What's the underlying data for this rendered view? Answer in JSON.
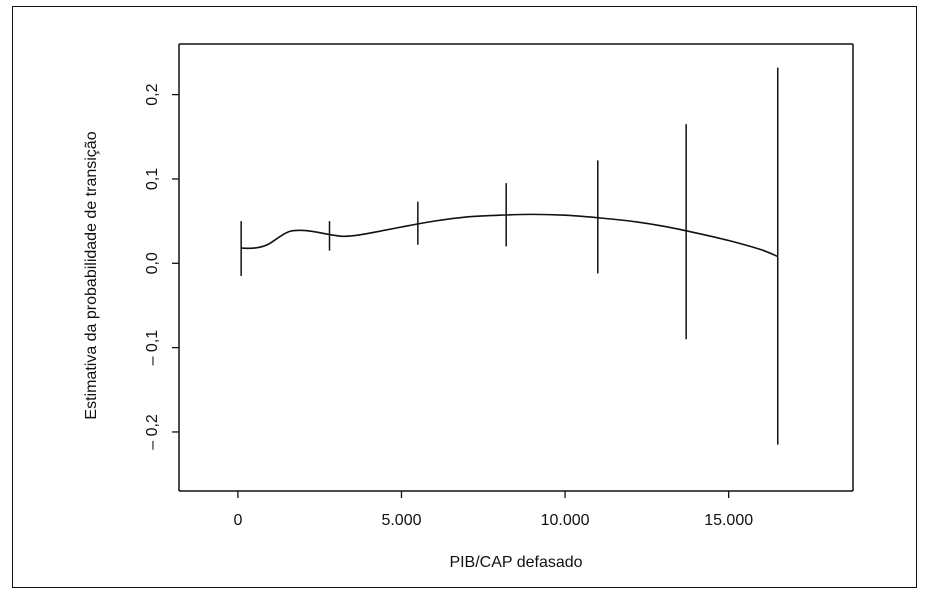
{
  "chart_data": {
    "type": "line",
    "title": "",
    "xlabel": "PIB/CAP defasado",
    "ylabel": "Estimativa da probabilidade de transição",
    "xlim": [
      -1800,
      18800
    ],
    "ylim": [
      -0.27,
      0.26
    ],
    "x_ticks": [
      0,
      5000,
      10000,
      15000
    ],
    "x_tick_labels": [
      "0",
      "5.000",
      "10.000",
      "15.000"
    ],
    "y_ticks": [
      -0.2,
      -0.1,
      0.0,
      0.1,
      0.2
    ],
    "y_tick_labels": [
      "– 0,2",
      "– 0,1",
      "0,0",
      "0,1",
      "0,2"
    ],
    "grid": false,
    "series": [
      {
        "x": [
          100,
          500,
          900,
          1300,
          1600,
          2000,
          2400,
          2800,
          3200,
          3600,
          4200,
          5000,
          6000,
          7000,
          8000,
          9000,
          10000,
          11000,
          12000,
          13000,
          14000,
          15000,
          16000,
          16500
        ],
        "values": [
          0.018,
          0.018,
          0.022,
          0.032,
          0.038,
          0.039,
          0.037,
          0.034,
          0.032,
          0.033,
          0.037,
          0.043,
          0.05,
          0.055,
          0.057,
          0.058,
          0.057,
          0.054,
          0.05,
          0.044,
          0.036,
          0.027,
          0.016,
          0.008
        ]
      }
    ],
    "error_bars": [
      {
        "x": 100,
        "low": -0.015,
        "high": 0.05
      },
      {
        "x": 2800,
        "low": 0.015,
        "high": 0.05
      },
      {
        "x": 5500,
        "low": 0.022,
        "high": 0.073
      },
      {
        "x": 8200,
        "low": 0.02,
        "high": 0.095
      },
      {
        "x": 11000,
        "low": -0.012,
        "high": 0.122
      },
      {
        "x": 13700,
        "low": -0.09,
        "high": 0.165
      },
      {
        "x": 16500,
        "low": -0.215,
        "high": 0.232
      }
    ]
  }
}
